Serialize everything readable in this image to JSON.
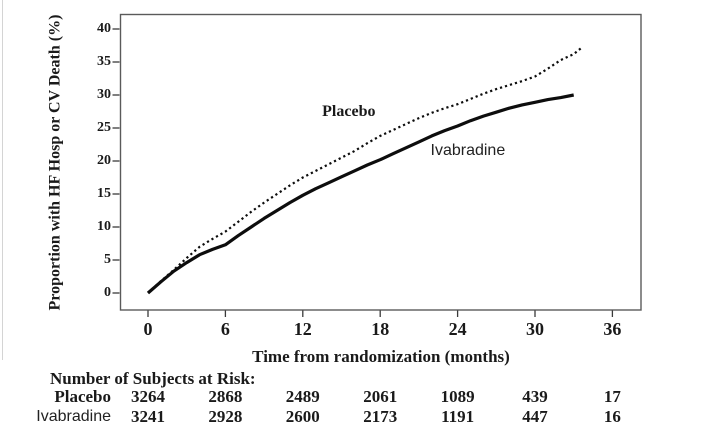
{
  "chart_data": {
    "type": "line",
    "title": "",
    "xlabel": "Time from randomization (months)",
    "ylabel": "Proportion with HF Hosp or CV Death (%)",
    "xlim": [
      0,
      36
    ],
    "ylim": [
      0,
      40
    ],
    "x_ticks": [
      0,
      6,
      12,
      18,
      24,
      30,
      36
    ],
    "y_ticks": [
      0,
      5,
      10,
      15,
      20,
      25,
      30,
      35,
      40
    ],
    "grid": false,
    "legend_position": "inline-labels",
    "series": [
      {
        "name": "Placebo",
        "line_style": "dotted",
        "color": "#0d0d0d",
        "x": [
          0,
          1,
          2,
          3,
          4,
          5,
          6,
          7,
          8,
          9,
          10,
          11,
          12,
          13,
          14,
          15,
          16,
          17,
          18,
          19,
          20,
          21,
          22,
          23,
          24,
          25,
          26,
          27,
          28,
          29,
          30,
          31,
          32,
          33,
          33.7
        ],
        "y": [
          0,
          1.8,
          3.5,
          5.3,
          7.0,
          8.2,
          9.3,
          10.8,
          12.3,
          13.7,
          15.0,
          16.3,
          17.5,
          18.5,
          19.5,
          20.5,
          21.5,
          22.7,
          23.8,
          24.7,
          25.6,
          26.5,
          27.3,
          28.0,
          28.6,
          29.4,
          30.2,
          30.9,
          31.5,
          32.1,
          32.8,
          34.0,
          35.3,
          36.2,
          37.3
        ]
      },
      {
        "name": "Ivabradine",
        "line_style": "solid",
        "color": "#0d0d0d",
        "x": [
          0,
          1,
          2,
          3,
          4,
          5,
          6,
          7,
          8,
          9,
          10,
          11,
          12,
          13,
          14,
          15,
          16,
          17,
          18,
          19,
          20,
          21,
          22,
          23,
          24,
          25,
          26,
          27,
          28,
          29,
          30,
          31,
          32,
          33
        ],
        "y": [
          0,
          1.7,
          3.3,
          4.6,
          5.8,
          6.6,
          7.3,
          8.7,
          10.0,
          11.3,
          12.5,
          13.7,
          14.8,
          15.8,
          16.7,
          17.6,
          18.5,
          19.4,
          20.2,
          21.1,
          22.0,
          22.9,
          23.8,
          24.6,
          25.3,
          26.1,
          26.8,
          27.4,
          28.0,
          28.5,
          28.9,
          29.3,
          29.6,
          30.0
        ]
      }
    ],
    "annotations": [
      {
        "text": "Placebo",
        "x_month": 13.5,
        "y_pct": 27.3
      },
      {
        "text": "Ivabradine",
        "x_month": 21.9,
        "y_pct": 21.4
      }
    ]
  },
  "risk_table": {
    "title": "Number of Subjects at Risk:",
    "columns_months": [
      0,
      6,
      12,
      18,
      24,
      30,
      36
    ],
    "rows": [
      {
        "label": "Placebo",
        "counts": [
          "3264",
          "2868",
          "2489",
          "2061",
          "1089",
          "439",
          "17"
        ]
      },
      {
        "label": "Ivabradine",
        "counts": [
          "3241",
          "2928",
          "2600",
          "2173",
          "1191",
          "447",
          "16"
        ]
      }
    ]
  }
}
